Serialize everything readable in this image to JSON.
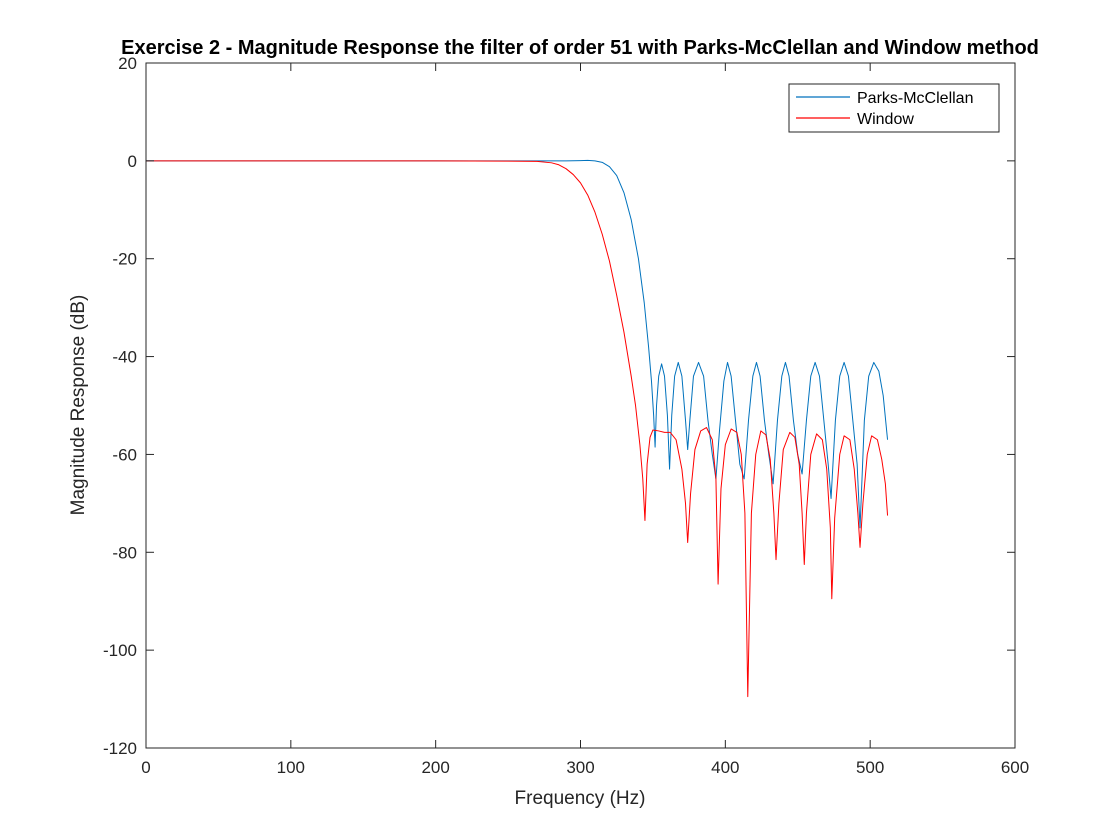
{
  "chart_data": {
    "type": "line",
    "title": "Exercise 2 - Magnitude Response the filter of order 51 with Parks-McClellan and Window method",
    "xlabel": "Frequency (Hz)",
    "ylabel": "Magnitude Response (dB)",
    "xlim": [
      0,
      600
    ],
    "ylim": [
      -120,
      20
    ],
    "xticks": [
      0,
      100,
      200,
      300,
      400,
      500,
      600
    ],
    "yticks": [
      -120,
      -100,
      -80,
      -60,
      -40,
      -20,
      0,
      20
    ],
    "xtick_labels": [
      "0",
      "100",
      "200",
      "300",
      "400",
      "500",
      "600"
    ],
    "ytick_labels": [
      "-120",
      "-100",
      "-80",
      "-60",
      "-40",
      "-20",
      "0",
      "20"
    ],
    "grid": false,
    "legend_position": "top-right",
    "series": [
      {
        "name": "Parks-McClellan",
        "color": "#0072BD",
        "points": [
          [
            0,
            0
          ],
          [
            100,
            0
          ],
          [
            200,
            0
          ],
          [
            270,
            0
          ],
          [
            290,
            0
          ],
          [
            300,
            0.05
          ],
          [
            305,
            0.1
          ],
          [
            310,
            0
          ],
          [
            315,
            -0.3
          ],
          [
            320,
            -1.2
          ],
          [
            325,
            -3
          ],
          [
            330,
            -6.5
          ],
          [
            335,
            -12
          ],
          [
            340,
            -20
          ],
          [
            344,
            -29
          ],
          [
            347,
            -38
          ],
          [
            349,
            -45
          ],
          [
            350.5,
            -52
          ],
          [
            351.5,
            -58.5
          ],
          [
            352.5,
            -50
          ],
          [
            354,
            -44
          ],
          [
            356,
            -41.5
          ],
          [
            358,
            -44
          ],
          [
            360,
            -52
          ],
          [
            361.5,
            -63
          ],
          [
            363,
            -52
          ],
          [
            365,
            -44
          ],
          [
            367.5,
            -41.2
          ],
          [
            370,
            -44
          ],
          [
            372.5,
            -53
          ],
          [
            374,
            -59
          ],
          [
            375.5,
            -53
          ],
          [
            378,
            -44
          ],
          [
            381.5,
            -41.2
          ],
          [
            385,
            -44
          ],
          [
            388,
            -53
          ],
          [
            391,
            -60
          ],
          [
            393.5,
            -65
          ],
          [
            396,
            -55
          ],
          [
            399,
            -45
          ],
          [
            401.5,
            -41.2
          ],
          [
            404,
            -44
          ],
          [
            407,
            -53
          ],
          [
            410,
            -62
          ],
          [
            413,
            -65
          ],
          [
            416,
            -53
          ],
          [
            419,
            -44
          ],
          [
            421.5,
            -41.2
          ],
          [
            424,
            -44
          ],
          [
            427,
            -53
          ],
          [
            430,
            -60
          ],
          [
            433,
            -66
          ],
          [
            436,
            -53
          ],
          [
            439,
            -44
          ],
          [
            441.5,
            -41.2
          ],
          [
            444,
            -44
          ],
          [
            447,
            -53
          ],
          [
            450,
            -60
          ],
          [
            453,
            -64
          ],
          [
            456,
            -53
          ],
          [
            459,
            -44
          ],
          [
            462,
            -41.2
          ],
          [
            465,
            -44
          ],
          [
            468,
            -53
          ],
          [
            471,
            -62
          ],
          [
            473,
            -69
          ],
          [
            476,
            -53
          ],
          [
            479,
            -44
          ],
          [
            482,
            -41.2
          ],
          [
            485,
            -44
          ],
          [
            488,
            -53
          ],
          [
            491,
            -62
          ],
          [
            493,
            -75
          ],
          [
            496,
            -53
          ],
          [
            499,
            -44
          ],
          [
            502.5,
            -41.2
          ],
          [
            506,
            -43
          ],
          [
            509,
            -48
          ],
          [
            512,
            -57
          ]
        ]
      },
      {
        "name": "Window",
        "color": "#FF0000",
        "points": [
          [
            0,
            0
          ],
          [
            100,
            0
          ],
          [
            200,
            0
          ],
          [
            250,
            -0.05
          ],
          [
            270,
            -0.1
          ],
          [
            280,
            -0.4
          ],
          [
            285,
            -0.8
          ],
          [
            290,
            -1.6
          ],
          [
            295,
            -2.8
          ],
          [
            300,
            -4.5
          ],
          [
            305,
            -7
          ],
          [
            310,
            -10.5
          ],
          [
            315,
            -15
          ],
          [
            320,
            -20.5
          ],
          [
            325,
            -27.5
          ],
          [
            330,
            -35
          ],
          [
            335,
            -44
          ],
          [
            338,
            -50
          ],
          [
            341,
            -58
          ],
          [
            343,
            -65
          ],
          [
            344.5,
            -73.5
          ],
          [
            346,
            -62
          ],
          [
            348,
            -56.5
          ],
          [
            350,
            -55
          ],
          [
            354,
            -55.2
          ],
          [
            358,
            -55.5
          ],
          [
            362,
            -55.5
          ],
          [
            366,
            -57
          ],
          [
            370,
            -63
          ],
          [
            372.5,
            -70
          ],
          [
            374,
            -78
          ],
          [
            376,
            -68
          ],
          [
            379,
            -59
          ],
          [
            383,
            -55.2
          ],
          [
            387,
            -54.5
          ],
          [
            391,
            -57
          ],
          [
            393.5,
            -65
          ],
          [
            395,
            -86.5
          ],
          [
            397,
            -67
          ],
          [
            400,
            -58
          ],
          [
            404,
            -54.8
          ],
          [
            408,
            -55.5
          ],
          [
            411,
            -60
          ],
          [
            413.5,
            -72
          ],
          [
            415.5,
            -109.5
          ],
          [
            418,
            -72
          ],
          [
            421,
            -60
          ],
          [
            424.5,
            -55.2
          ],
          [
            428,
            -56
          ],
          [
            431,
            -61
          ],
          [
            433.5,
            -72
          ],
          [
            435,
            -81.5
          ],
          [
            437,
            -70
          ],
          [
            440,
            -59
          ],
          [
            444.5,
            -55.5
          ],
          [
            448,
            -56.5
          ],
          [
            451,
            -62
          ],
          [
            453,
            -72
          ],
          [
            454.5,
            -82.5
          ],
          [
            456,
            -72
          ],
          [
            459,
            -60
          ],
          [
            463,
            -55.8
          ],
          [
            467,
            -57
          ],
          [
            470,
            -63
          ],
          [
            472.5,
            -75
          ],
          [
            473.5,
            -89.5
          ],
          [
            475.5,
            -73
          ],
          [
            479,
            -60
          ],
          [
            482,
            -56.2
          ],
          [
            486,
            -57
          ],
          [
            489,
            -63
          ],
          [
            491.5,
            -72
          ],
          [
            493,
            -79
          ],
          [
            495,
            -70
          ],
          [
            498,
            -60
          ],
          [
            501,
            -56.2
          ],
          [
            505,
            -57
          ],
          [
            508,
            -61
          ],
          [
            510.5,
            -66
          ],
          [
            512,
            -72.5
          ]
        ]
      }
    ]
  }
}
